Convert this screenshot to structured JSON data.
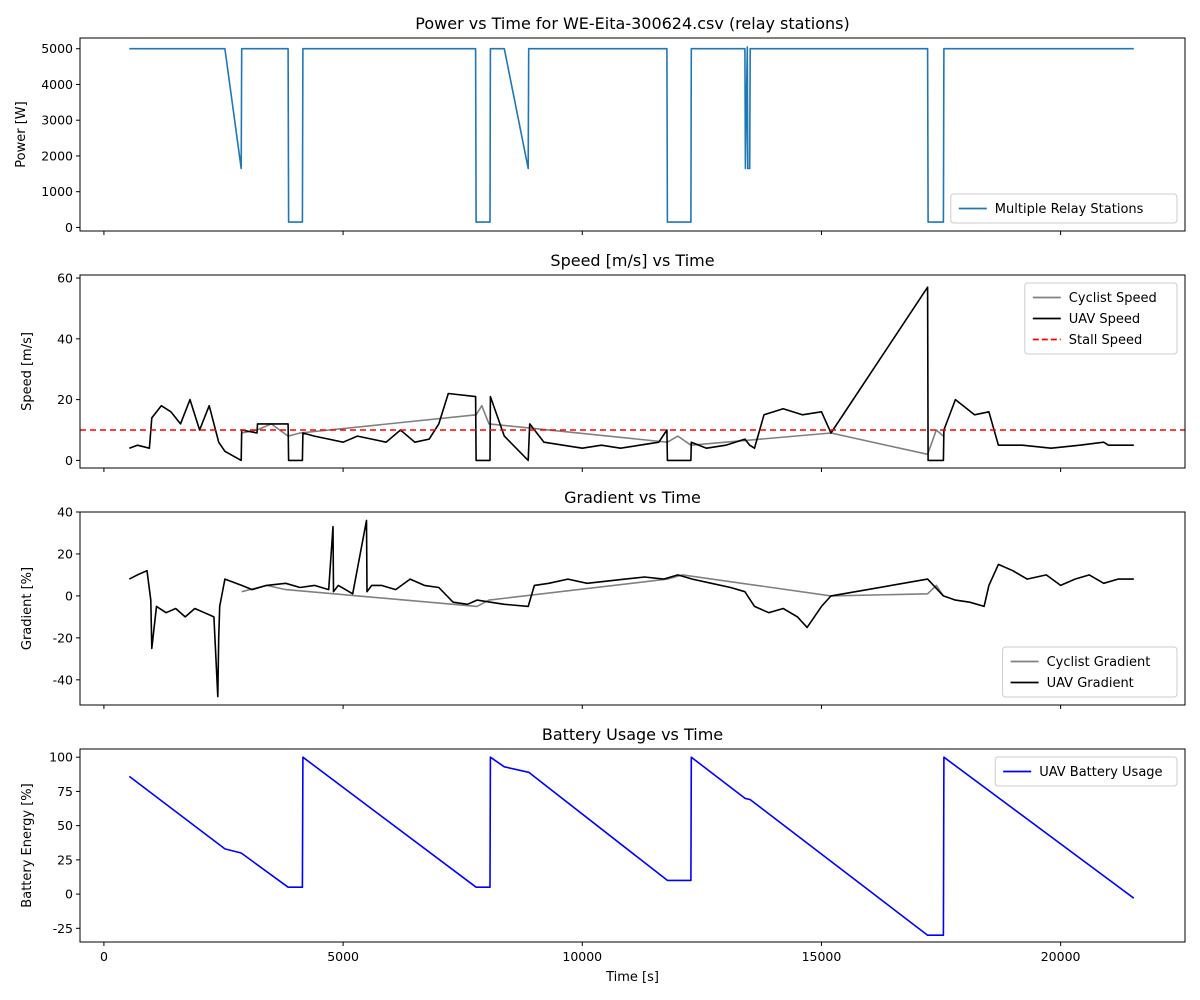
{
  "chart_data": [
    {
      "type": "line",
      "title": "Power vs Time for WE-Eita-300624.csv (relay stations)",
      "xlabel": "",
      "ylabel": "Power [W]",
      "xlim": [
        -500,
        22600
      ],
      "ylim": [
        -100,
        5300
      ],
      "yticks": [
        0,
        1000,
        2000,
        3000,
        4000,
        5000
      ],
      "show_xtick_labels": false,
      "legend_position": "lower-right",
      "series": [
        {
          "name": "Multiple Relay Stations",
          "color": "#1f77b4",
          "style": "solid",
          "x": [
            530,
            2530,
            2870,
            2880,
            3850,
            3860,
            4150,
            4160,
            7770,
            7780,
            8070,
            8080,
            8370,
            8870,
            8880,
            11770,
            11780,
            12270,
            12280,
            13380,
            13400,
            13410,
            13450,
            13460,
            13500,
            13510,
            17220,
            17230,
            17550,
            17560,
            21530
          ],
          "y": [
            5000,
            5000,
            1650,
            5000,
            5000,
            150,
            150,
            5000,
            5000,
            150,
            150,
            5000,
            5000,
            1650,
            5000,
            5000,
            150,
            150,
            5000,
            5000,
            5000,
            1650,
            5050,
            1650,
            1650,
            5000,
            5000,
            150,
            150,
            5000,
            5000
          ]
        }
      ]
    },
    {
      "type": "line",
      "title": "Speed [m/s] vs Time",
      "xlabel": "",
      "ylabel": "Speed [m/s]",
      "xlim": [
        -500,
        22600
      ],
      "ylim": [
        -2.5,
        61
      ],
      "yticks": [
        0,
        20,
        40,
        60
      ],
      "show_xtick_labels": false,
      "legend_position": "upper-right",
      "series": [
        {
          "name": "Cyclist Speed",
          "color": "#808080",
          "style": "solid",
          "x": [
            2880,
            3200,
            3500,
            3850,
            4100,
            7780,
            7900,
            8050,
            11780,
            12000,
            12270,
            15200,
            17220,
            17400,
            17550
          ],
          "y": [
            9,
            10,
            12,
            8,
            9,
            15,
            18,
            12,
            6,
            8,
            5,
            9,
            2,
            10,
            8
          ]
        },
        {
          "name": "UAV Speed",
          "color": "#000000",
          "style": "solid",
          "x": [
            530,
            700,
            950,
            1000,
            1200,
            1400,
            1600,
            1800,
            2000,
            2200,
            2400,
            2530,
            2870,
            2880,
            3200,
            3210,
            3850,
            3860,
            4150,
            4160,
            4400,
            4700,
            5000,
            5300,
            5600,
            5900,
            6200,
            6500,
            6800,
            7000,
            7200,
            7770,
            7780,
            8070,
            8080,
            8370,
            8870,
            8900,
            9200,
            9600,
            10000,
            10400,
            10800,
            11200,
            11600,
            11770,
            11780,
            12270,
            12280,
            12600,
            13000,
            13400,
            13500,
            13600,
            13800,
            14200,
            14600,
            15000,
            15200,
            17220,
            17230,
            17550,
            17560,
            17800,
            18200,
            18500,
            18700,
            19200,
            19800,
            20400,
            20900,
            21000,
            21530
          ],
          "y": [
            4,
            5,
            4,
            14,
            18,
            16,
            12,
            20,
            10,
            18,
            6,
            3,
            0,
            10,
            9,
            12,
            12,
            0,
            0,
            9,
            8,
            7,
            6,
            8,
            7,
            6,
            10,
            6,
            7,
            12,
            22,
            21,
            0,
            0,
            21,
            8,
            0,
            12,
            6,
            5,
            4,
            5,
            4,
            5,
            6,
            10,
            0,
            0,
            6,
            4,
            5,
            7,
            5,
            4,
            15,
            17,
            15,
            16,
            9,
            57,
            0,
            0,
            10,
            20,
            15,
            16,
            5,
            5,
            4,
            5,
            6,
            5,
            5
          ]
        },
        {
          "name": "Stall Speed",
          "color": "#ff0000",
          "style": "dashed",
          "x": [
            -500,
            22600
          ],
          "y": [
            10,
            10
          ]
        }
      ]
    },
    {
      "type": "line",
      "title": "Gradient vs Time",
      "xlabel": "",
      "ylabel": "Gradient [%]",
      "xlim": [
        -500,
        22600
      ],
      "ylim": [
        -52,
        40
      ],
      "yticks": [
        -40,
        -20,
        0,
        20,
        40
      ],
      "show_xtick_labels": false,
      "legend_position": "lower-right",
      "series": [
        {
          "name": "Cyclist Gradient",
          "color": "#808080",
          "style": "solid",
          "x": [
            2880,
            3400,
            3800,
            7800,
            8050,
            11780,
            12100,
            15200,
            17220,
            17400,
            17550
          ],
          "y": [
            2,
            5,
            3,
            -5,
            -2,
            8,
            10,
            0,
            1,
            5,
            0
          ],
          "marks": []
        },
        {
          "name": "UAV Gradient",
          "color": "#000000",
          "style": "solid",
          "x": [
            530,
            700,
            900,
            980,
            1000,
            1100,
            1300,
            1500,
            1700,
            1900,
            2100,
            2300,
            2380,
            2400,
            2420,
            2530,
            2880,
            3100,
            3400,
            3800,
            4100,
            4400,
            4700,
            4790,
            4800,
            4900,
            5200,
            5490,
            5500,
            5600,
            5800,
            6100,
            6400,
            6700,
            7000,
            7300,
            7600,
            7800,
            8080,
            8370,
            8870,
            9000,
            9300,
            9700,
            10100,
            10500,
            10900,
            11300,
            11700,
            12000,
            12300,
            12700,
            13100,
            13400,
            13600,
            13900,
            14200,
            14500,
            14700,
            15000,
            15200,
            17220,
            17550,
            17800,
            18100,
            18400,
            18500,
            18700,
            19000,
            19300,
            19700,
            20000,
            20300,
            20600,
            20900,
            21200,
            21530
          ],
          "y": [
            8,
            10,
            12,
            -2,
            -25,
            -5,
            -8,
            -6,
            -10,
            -6,
            -8,
            -10,
            -48,
            -20,
            -5,
            8,
            5,
            3,
            5,
            6,
            4,
            5,
            3,
            33,
            2,
            5,
            1,
            36,
            2,
            5,
            5,
            3,
            8,
            5,
            4,
            -3,
            -4,
            -2,
            -3,
            -4,
            -5,
            5,
            6,
            8,
            6,
            7,
            8,
            9,
            8,
            10,
            8,
            6,
            4,
            2,
            -5,
            -8,
            -6,
            -10,
            -15,
            -5,
            0,
            8,
            0,
            -2,
            -3,
            -5,
            5,
            15,
            12,
            8,
            10,
            5,
            8,
            10,
            6,
            8,
            8
          ]
        }
      ]
    },
    {
      "type": "line",
      "title": "Battery Usage vs Time",
      "xlabel": "Time [s]",
      "ylabel": "Battery Energy [%]",
      "xlim": [
        -500,
        22600
      ],
      "ylim": [
        -35,
        106
      ],
      "yticks": [
        -25,
        0,
        25,
        50,
        75,
        100
      ],
      "xticks": [
        0,
        5000,
        10000,
        15000,
        20000
      ],
      "show_xtick_labels": true,
      "legend_position": "upper-right",
      "series": [
        {
          "name": "UAV Battery Usage",
          "color": "#0000ff",
          "style": "solid",
          "x": [
            530,
            2530,
            2870,
            3850,
            4150,
            4160,
            7780,
            8070,
            8080,
            8370,
            8880,
            11780,
            12270,
            12280,
            13400,
            13510,
            17220,
            17550,
            17560,
            21530
          ],
          "y": [
            86,
            33,
            30,
            5,
            5,
            100,
            5,
            5,
            100,
            93,
            89,
            10,
            10,
            100,
            70,
            69,
            -30,
            -30,
            100,
            -3
          ]
        }
      ]
    }
  ]
}
